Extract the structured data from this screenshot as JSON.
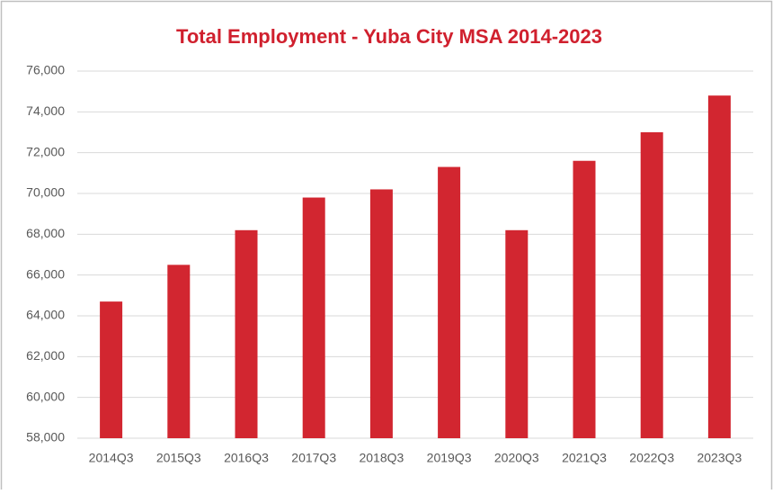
{
  "chart_data": {
    "type": "bar",
    "title": "Total Employment - Yuba City MSA 2014-2023",
    "categories": [
      "2014Q3",
      "2015Q3",
      "2016Q3",
      "2017Q3",
      "2018Q3",
      "2019Q3",
      "2020Q3",
      "2021Q3",
      "2022Q3",
      "2023Q3"
    ],
    "values": [
      64700,
      66500,
      68200,
      69800,
      70200,
      71300,
      68200,
      71600,
      73000,
      74800
    ],
    "color": "#d22630",
    "ylim": [
      58000,
      76000
    ],
    "yticks": [
      {
        "value": 58000,
        "label": "58,000"
      },
      {
        "value": 60000,
        "label": "60,000"
      },
      {
        "value": 62000,
        "label": "62,000"
      },
      {
        "value": 64000,
        "label": "64,000"
      },
      {
        "value": 66000,
        "label": "66,000"
      },
      {
        "value": 68000,
        "label": "68,000"
      },
      {
        "value": 70000,
        "label": "70,000"
      },
      {
        "value": 72000,
        "label": "72,000"
      },
      {
        "value": 74000,
        "label": "74,000"
      },
      {
        "value": 76000,
        "label": "76,000"
      }
    ],
    "grid": true
  }
}
